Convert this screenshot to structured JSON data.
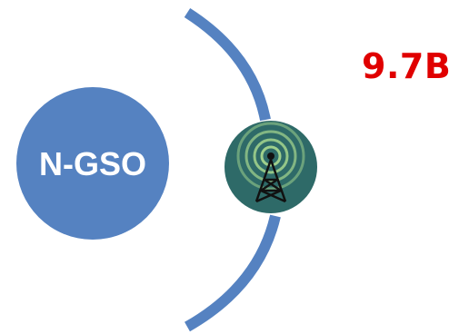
{
  "diagram": {
    "node_label": "N-GSO",
    "value_label": "9.7B",
    "icon": "radio-tower-icon"
  },
  "colors": {
    "node_fill": "#5582C1",
    "node_text": "#ffffff",
    "orbit_stroke": "#5582C1",
    "tower_badge_fill": "#2E6A68",
    "tower_waves": "#9FD08C",
    "tower_body": "#111111",
    "value_text": "#E00000"
  }
}
